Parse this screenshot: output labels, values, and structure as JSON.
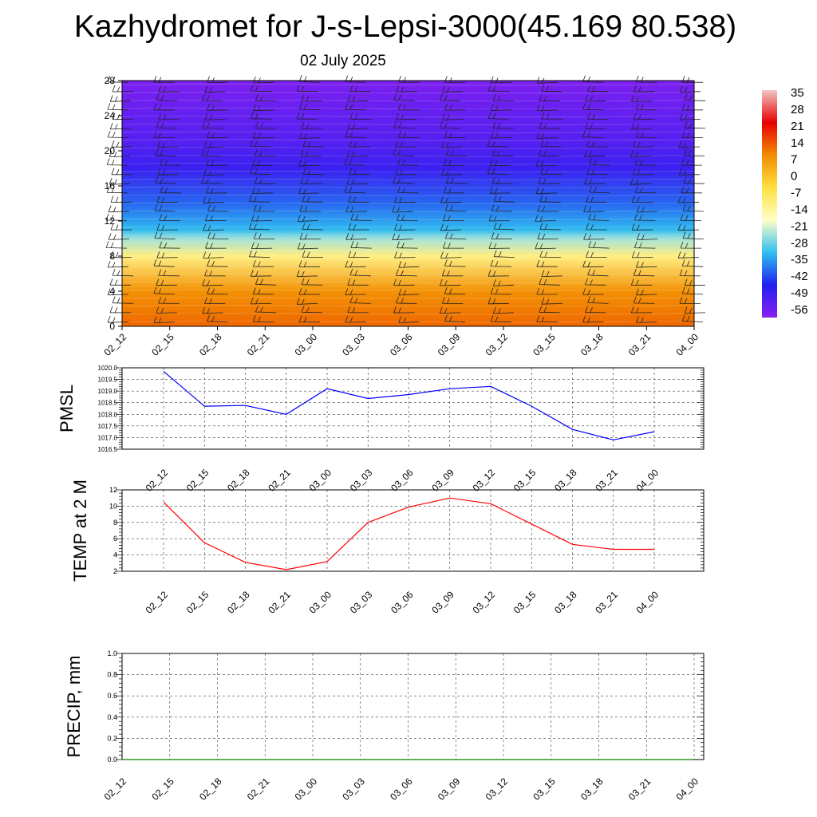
{
  "title": "Kazhydromet for J-s-Lepsi-3000(45.169 80.538)",
  "subtitle": "02 July 2025",
  "chart_data": [
    {
      "type": "heatmap",
      "name": "cross-section",
      "x_ticks": [
        "02_12",
        "02_15",
        "02_18",
        "02_21",
        "03_00",
        "03_03",
        "03_06",
        "03_09",
        "03_12",
        "03_15",
        "03_18",
        "03_21",
        "04_00"
      ],
      "y_ticks": [
        "0",
        "4",
        "8",
        "12",
        "16",
        "20",
        "24",
        "28"
      ],
      "ylim": [
        0,
        28
      ],
      "colorbar_labels": [
        "35",
        "28",
        "21",
        "14",
        "7",
        "0",
        "-7",
        "-14",
        "-21",
        "-28",
        "-35",
        "-42",
        "-49",
        "-56"
      ],
      "colorbar_colors": [
        "#f2c4c4",
        "#e80000",
        "#f28c00",
        "#ffe040",
        "#ffffc8",
        "#30c0f0",
        "#2020f0",
        "#8a20f0"
      ],
      "temperature_profile": [
        {
          "height": 0,
          "value": 12
        },
        {
          "height": 4,
          "value": 6
        },
        {
          "height": 8,
          "value": -2
        },
        {
          "height": 10,
          "value": -10
        },
        {
          "height": 11,
          "value": -18
        },
        {
          "height": 14,
          "value": -32
        },
        {
          "height": 18,
          "value": -48
        },
        {
          "height": 21,
          "value": -52
        },
        {
          "height": 24,
          "value": -54
        },
        {
          "height": 28,
          "value": -58
        }
      ],
      "wind_barbs": "shown"
    },
    {
      "type": "line",
      "ylabel": "PMSL",
      "categories": [
        "02_12",
        "02_15",
        "02_18",
        "02_21",
        "03_00",
        "03_03",
        "03_06",
        "03_09",
        "03_12",
        "03_15",
        "03_18",
        "03_21",
        "04_00"
      ],
      "values": [
        1019.85,
        1018.35,
        1018.38,
        1018.0,
        1019.1,
        1018.68,
        1018.85,
        1019.1,
        1019.2,
        1018.35,
        1017.35,
        1016.9,
        1017.25
      ],
      "ylim": [
        1016.5,
        1020.0
      ],
      "y_ticks": [
        "1016.5",
        "1017.0",
        "1017.5",
        "1018.0",
        "1018.5",
        "1019.0",
        "1019.5",
        "1020.0"
      ],
      "color": "#0000ff",
      "grid": true
    },
    {
      "type": "line",
      "ylabel": "TEMP at 2 M",
      "categories": [
        "02_12",
        "02_15",
        "02_18",
        "02_21",
        "03_00",
        "03_03",
        "03_06",
        "03_09",
        "03_12",
        "03_15",
        "03_18",
        "03_21",
        "04_00"
      ],
      "values": [
        10.5,
        5.5,
        3.1,
        2.2,
        3.2,
        8.0,
        9.9,
        11.0,
        10.3,
        7.8,
        5.3,
        4.7,
        4.7
      ],
      "ylim": [
        2,
        12
      ],
      "y_ticks": [
        "2",
        "4",
        "6",
        "8",
        "10",
        "12"
      ],
      "color": "#ff0000",
      "grid": true
    },
    {
      "type": "line",
      "ylabel": "PRECIP, mm",
      "categories": [
        "02_12",
        "02_15",
        "02_18",
        "02_21",
        "03_00",
        "03_03",
        "03_06",
        "03_09",
        "03_12",
        "03_15",
        "03_18",
        "03_21",
        "04_00"
      ],
      "values": [
        0,
        0,
        0,
        0,
        0,
        0,
        0,
        0,
        0,
        0,
        0,
        0,
        0
      ],
      "ylim": [
        0,
        1.0
      ],
      "y_ticks": [
        "0.0",
        "0.2",
        "0.4",
        "0.6",
        "0.8",
        "1.0"
      ],
      "color": "#008000",
      "grid": true
    }
  ]
}
